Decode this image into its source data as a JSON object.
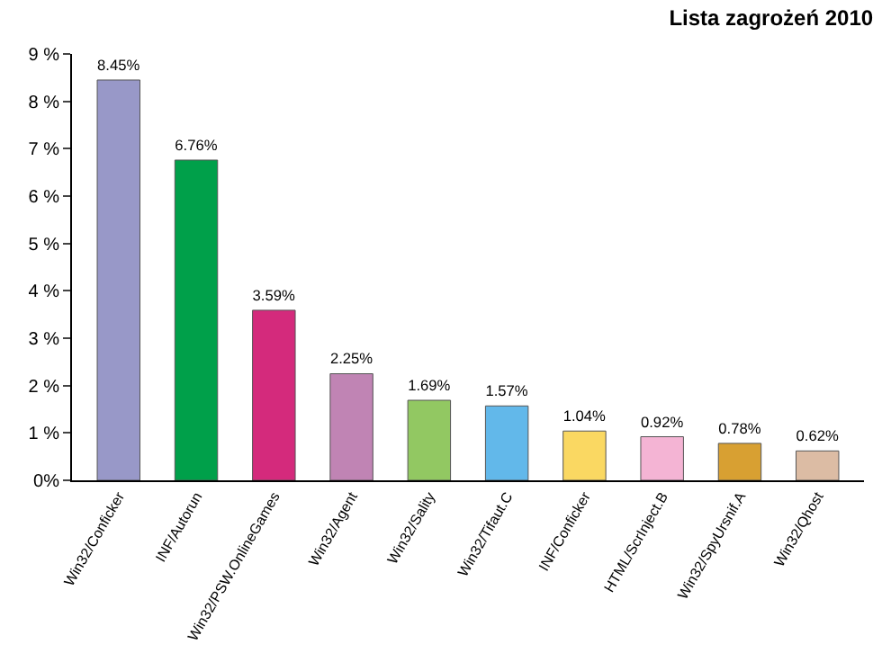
{
  "chart_data": {
    "type": "bar",
    "title": "Lista zagrożeń 2010",
    "categories": [
      "Win32/Conficker",
      "INF/Autorun",
      "Win32/PSW.OnlineGames",
      "Win32/Agent",
      "Win32/Sality",
      "Win32/Tifaut.C",
      "INF/Conficker",
      "HTML/ScrInject.B",
      "Win32/SpyUrsnif.A",
      "Win32/Qhost"
    ],
    "values": [
      8.45,
      6.76,
      3.59,
      2.25,
      1.69,
      1.57,
      1.04,
      0.92,
      0.78,
      0.62
    ],
    "colors": [
      "#9898c8",
      "#00a04a",
      "#d42a7c",
      "#c084b4",
      "#92c862",
      "#62b8ea",
      "#fad862",
      "#f4b4d4",
      "#d8a032",
      "#dcbca4"
    ],
    "value_labels": [
      "8.45%",
      "6.76%",
      "3.59%",
      "2.25%",
      "1.69%",
      "1.57%",
      "1.04%",
      "0.92%",
      "0.78%",
      "0.62%"
    ],
    "ylim": [
      0,
      9
    ],
    "yticks": [
      {
        "value": 0,
        "label": "0%"
      },
      {
        "value": 1,
        "label": "1 %"
      },
      {
        "value": 2,
        "label": "2 %"
      },
      {
        "value": 3,
        "label": "3 %"
      },
      {
        "value": 4,
        "label": "4 %"
      },
      {
        "value": 5,
        "label": "5 %"
      },
      {
        "value": 6,
        "label": "6 %"
      },
      {
        "value": 7,
        "label": "7 %"
      },
      {
        "value": 8,
        "label": "8 %"
      },
      {
        "value": 9,
        "label": "9 %"
      }
    ],
    "legend": false
  }
}
